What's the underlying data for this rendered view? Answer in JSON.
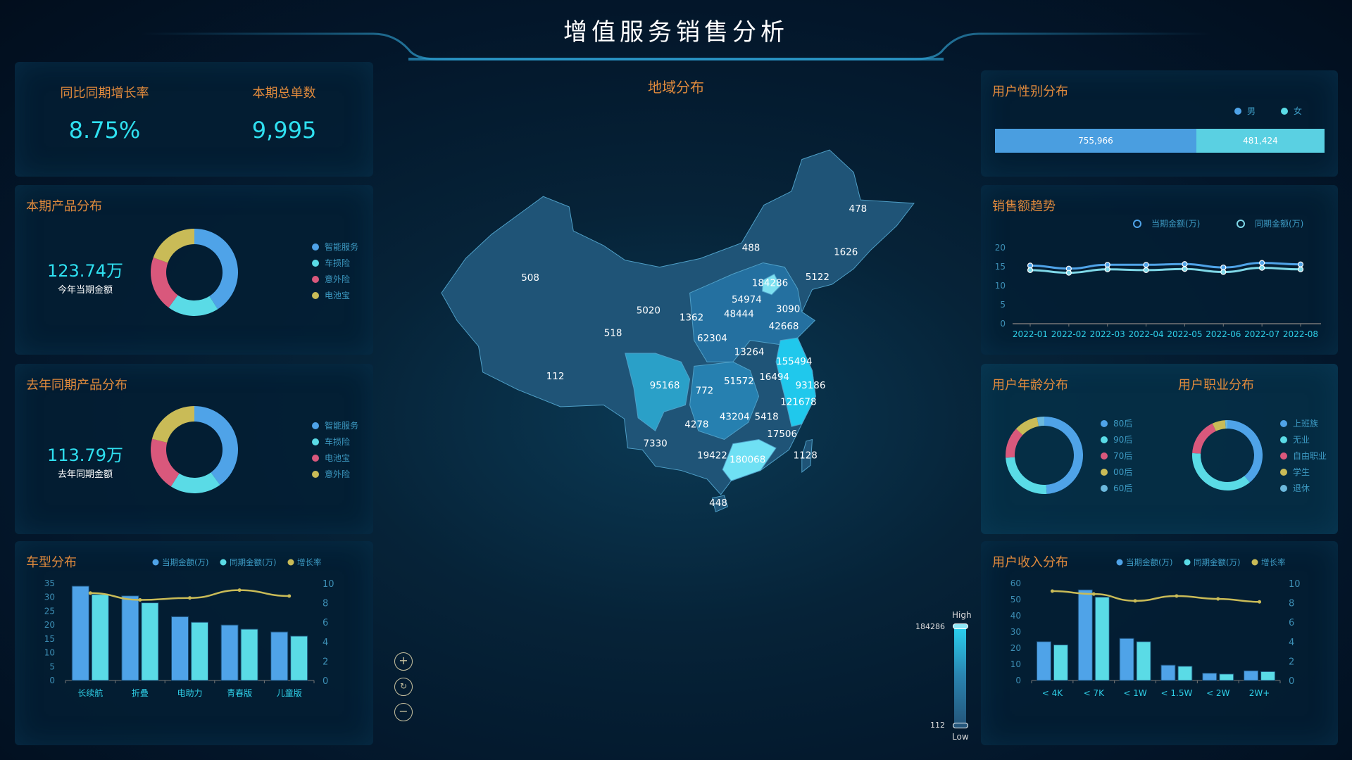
{
  "header": {
    "title": "增值服务销售分析",
    "map_title": "地域分布"
  },
  "kpi": {
    "growth_label": "同比同期增长率",
    "growth_value": "8.75%",
    "orders_label": "本期总单数",
    "orders_value": "9,995"
  },
  "colors": {
    "blue": "#4fa3e8",
    "cyan": "#5adbe6",
    "red": "#d9587c",
    "yellow": "#c9bb57",
    "lightblue": "#6cb9dd",
    "title": "#e08a3c"
  },
  "product_current": {
    "title": "本期产品分布",
    "amount": "123.74万",
    "amount_label": "今年当期金额",
    "items": [
      {
        "label": "智能服务",
        "value": 41,
        "color": "#4fa3e8"
      },
      {
        "label": "车损险",
        "value": 19,
        "color": "#5adbe6"
      },
      {
        "label": "意外险",
        "value": 20.5,
        "color": "#d9587c"
      },
      {
        "label": "电池宝",
        "value": 19.5,
        "color": "#c9bb57"
      }
    ]
  },
  "product_last": {
    "title": "去年同期产品分布",
    "amount": "113.79万",
    "amount_label": "去年同期金额",
    "items": [
      {
        "label": "智能服务",
        "value": 40,
        "color": "#4fa3e8"
      },
      {
        "label": "车损险",
        "value": 19,
        "color": "#5adbe6"
      },
      {
        "label": "电池宝",
        "value": 20,
        "color": "#d9587c"
      },
      {
        "label": "意外险",
        "value": 21,
        "color": "#c9bb57"
      }
    ]
  },
  "gender": {
    "title": "用户性别分布",
    "male_label": "男",
    "female_label": "女",
    "male": 755966,
    "female": 481424,
    "male_text": "755,966",
    "female_text": "481,424"
  },
  "age": {
    "title": "用户年龄分布",
    "items": [
      {
        "label": "80后",
        "value": 49,
        "color": "#4fa3e8"
      },
      {
        "label": "90后",
        "value": 25,
        "color": "#5adbe6"
      },
      {
        "label": "70后",
        "value": 13,
        "color": "#d9587c"
      },
      {
        "label": "00后",
        "value": 10,
        "color": "#c9bb57"
      },
      {
        "label": "60后",
        "value": 3,
        "color": "#6cb9dd"
      }
    ]
  },
  "job": {
    "title": "用户职业分布",
    "items": [
      {
        "label": "上班族",
        "value": 39,
        "color": "#4fa3e8"
      },
      {
        "label": "无业",
        "value": 37,
        "color": "#5adbe6"
      },
      {
        "label": "自由职业",
        "value": 17,
        "color": "#d9587c"
      },
      {
        "label": "学生",
        "value": 6,
        "color": "#c9bb57"
      },
      {
        "label": "退休",
        "value": 1,
        "color": "#6cb9dd"
      }
    ]
  },
  "map": {
    "legend_high": "High",
    "legend_low": "Low",
    "max": "184286",
    "min": "112",
    "regions": [
      {
        "name": "黑龙江",
        "value": "478"
      },
      {
        "name": "内蒙古",
        "value": "488"
      },
      {
        "name": "吉林",
        "value": "1626"
      },
      {
        "name": "新疆",
        "value": "508"
      },
      {
        "name": "辽宁",
        "value": "5122"
      },
      {
        "name": "北京",
        "value": "184286"
      },
      {
        "name": "河北",
        "value": "54974"
      },
      {
        "name": "天津",
        "value": "3090"
      },
      {
        "name": "甘肃",
        "value": "5020"
      },
      {
        "name": "宁夏",
        "value": "1362"
      },
      {
        "name": "山西",
        "value": "48444"
      },
      {
        "name": "山东",
        "value": "42668"
      },
      {
        "name": "青海",
        "value": "518"
      },
      {
        "name": "陕西",
        "value": "62304"
      },
      {
        "name": "河南",
        "value": "13264"
      },
      {
        "name": "江苏",
        "value": "155494"
      },
      {
        "name": "西藏",
        "value": "112"
      },
      {
        "name": "安徽",
        "value": "16494"
      },
      {
        "name": "四川",
        "value": "95168"
      },
      {
        "name": "湖北",
        "value": "51572"
      },
      {
        "name": "上海",
        "value": "93186"
      },
      {
        "name": "重庆",
        "value": "772"
      },
      {
        "name": "浙江",
        "value": "121678"
      },
      {
        "name": "湖南",
        "value": "43204"
      },
      {
        "name": "江西",
        "value": "5418"
      },
      {
        "name": "贵州",
        "value": "4278"
      },
      {
        "name": "福建",
        "value": "17506"
      },
      {
        "name": "云南",
        "value": "7330"
      },
      {
        "name": "广西",
        "value": "19422"
      },
      {
        "name": "台湾",
        "value": "1128"
      },
      {
        "name": "广东",
        "value": "180068"
      },
      {
        "name": "海南",
        "value": "448"
      }
    ]
  },
  "chart_data": [
    {
      "type": "bar",
      "id": "car",
      "title": "车型分布",
      "categories": [
        "长续航",
        "折叠",
        "电助力",
        "青春版",
        "儿童版"
      ],
      "series": [
        {
          "name": "当期金额(万)",
          "type": "bar",
          "values": [
            34,
            30.5,
            23,
            20,
            17.5
          ],
          "color": "#4fa3e8"
        },
        {
          "name": "同期金额(万)",
          "type": "bar",
          "values": [
            31,
            28,
            21,
            18.5,
            16
          ],
          "color": "#5adbe6"
        },
        {
          "name": "增长率",
          "type": "line",
          "axis": "right",
          "values": [
            9,
            8.3,
            8.5,
            9.3,
            8.7
          ],
          "color": "#c9bb57"
        }
      ],
      "ylim": [
        0,
        35
      ],
      "yticks": [
        0,
        5,
        10,
        15,
        20,
        25,
        30,
        35
      ],
      "y2lim": [
        0,
        10
      ],
      "y2ticks": [
        0,
        2,
        4,
        6,
        8,
        10
      ],
      "legend": "top-right"
    },
    {
      "type": "bar",
      "id": "income",
      "title": "用户收入分布",
      "categories": [
        "< 4K",
        "< 7K",
        "< 1W",
        "< 1.5W",
        "< 2W",
        "2W+"
      ],
      "series": [
        {
          "name": "当期金额(万)",
          "type": "bar",
          "values": [
            24,
            56,
            26,
            9.5,
            4.5,
            6
          ],
          "color": "#4fa3e8"
        },
        {
          "name": "同期金额(万)",
          "type": "bar",
          "values": [
            22,
            51.5,
            24,
            8.8,
            4,
            5.5
          ],
          "color": "#5adbe6"
        },
        {
          "name": "增长率",
          "type": "line",
          "axis": "right",
          "values": [
            9.2,
            8.9,
            8.2,
            8.7,
            8.4,
            8.1
          ],
          "color": "#c9bb57"
        }
      ],
      "ylim": [
        0,
        60
      ],
      "yticks": [
        0,
        10,
        20,
        30,
        40,
        50,
        60
      ],
      "y2lim": [
        0,
        10
      ],
      "y2ticks": [
        0,
        2,
        4,
        6,
        8,
        10
      ],
      "legend": "top-right"
    },
    {
      "type": "line",
      "id": "trend",
      "title": "销售额趋势",
      "categories": [
        "2022-01",
        "2022-02",
        "2022-03",
        "2022-04",
        "2022-05",
        "2022-06",
        "2022-07",
        "2022-08"
      ],
      "series": [
        {
          "name": "当期金额(万)",
          "values": [
            15.3,
            14.5,
            15.5,
            15.5,
            15.7,
            14.8,
            16,
            15.6
          ],
          "color": "#4fa3e8"
        },
        {
          "name": "同期金额(万)",
          "values": [
            14.1,
            13.4,
            14.3,
            14.1,
            14.4,
            13.6,
            14.7,
            14.3
          ],
          "color": "#7fd8e8"
        }
      ],
      "ylim": [
        0,
        20
      ],
      "yticks": [
        0,
        5,
        10,
        15,
        20
      ],
      "legend": "top-right"
    }
  ]
}
